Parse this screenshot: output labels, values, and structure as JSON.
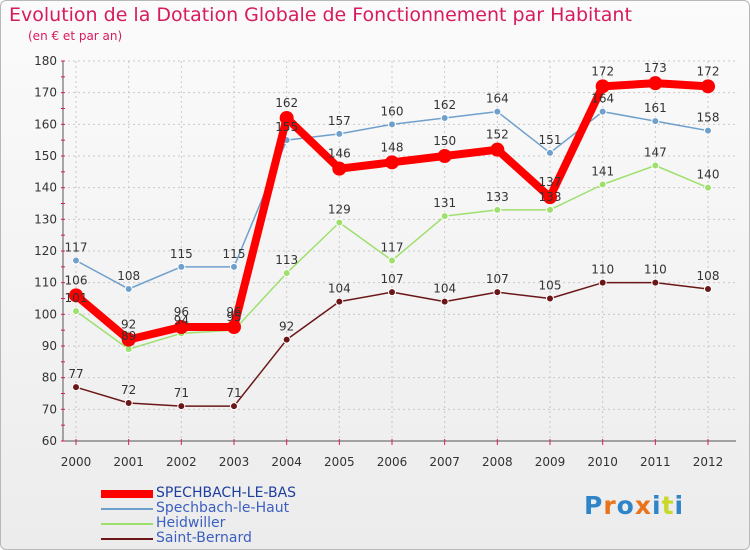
{
  "chart_data": {
    "type": "line",
    "title": "Evolution de la Dotation Globale de Fonctionnement par Habitant",
    "subtitle": "(en € et par an)",
    "xlabel": "",
    "ylabel": "",
    "x": [
      "2000",
      "2001",
      "2002",
      "2003",
      "2004",
      "2005",
      "2006",
      "2007",
      "2008",
      "2009",
      "2010",
      "2011",
      "2012"
    ],
    "ylim": [
      60,
      180
    ],
    "yticks": [
      60,
      70,
      80,
      90,
      100,
      110,
      120,
      130,
      140,
      150,
      160,
      170,
      180
    ],
    "grid": true,
    "legend_position": "bottom-left",
    "series": [
      {
        "name": "Saint-Bernard",
        "color": "#6b1717",
        "values": [
          77,
          72,
          71,
          71,
          92,
          104,
          107,
          104,
          107,
          105,
          110,
          110,
          108
        ]
      },
      {
        "name": "Heidwiller",
        "color": "#9ee06d",
        "values": [
          101,
          89,
          94,
          95,
          113,
          129,
          117,
          131,
          133,
          133,
          141,
          147,
          140
        ]
      },
      {
        "name": "Spechbach-le-Haut",
        "color": "#6fa0cc",
        "values": [
          117,
          108,
          115,
          115,
          155,
          157,
          160,
          162,
          164,
          151,
          164,
          161,
          158
        ]
      },
      {
        "name": "SPECHBACH-LE-BAS",
        "color": "#ff0000",
        "values": [
          106,
          92,
          96,
          96,
          162,
          146,
          148,
          150,
          152,
          137,
          172,
          173,
          172
        ]
      }
    ],
    "legend_order": [
      "SPECHBACH-LE-BAS",
      "Spechbach-le-Haut",
      "Heidwiller",
      "Saint-Bernard"
    ]
  },
  "logo": {
    "text": "Proxiti",
    "letter_colors": [
      "#2e86c9",
      "#e8731c",
      "#2e86c9",
      "#e8731c",
      "#2e86c9",
      "#c9d82a",
      "#2e86c9"
    ]
  }
}
